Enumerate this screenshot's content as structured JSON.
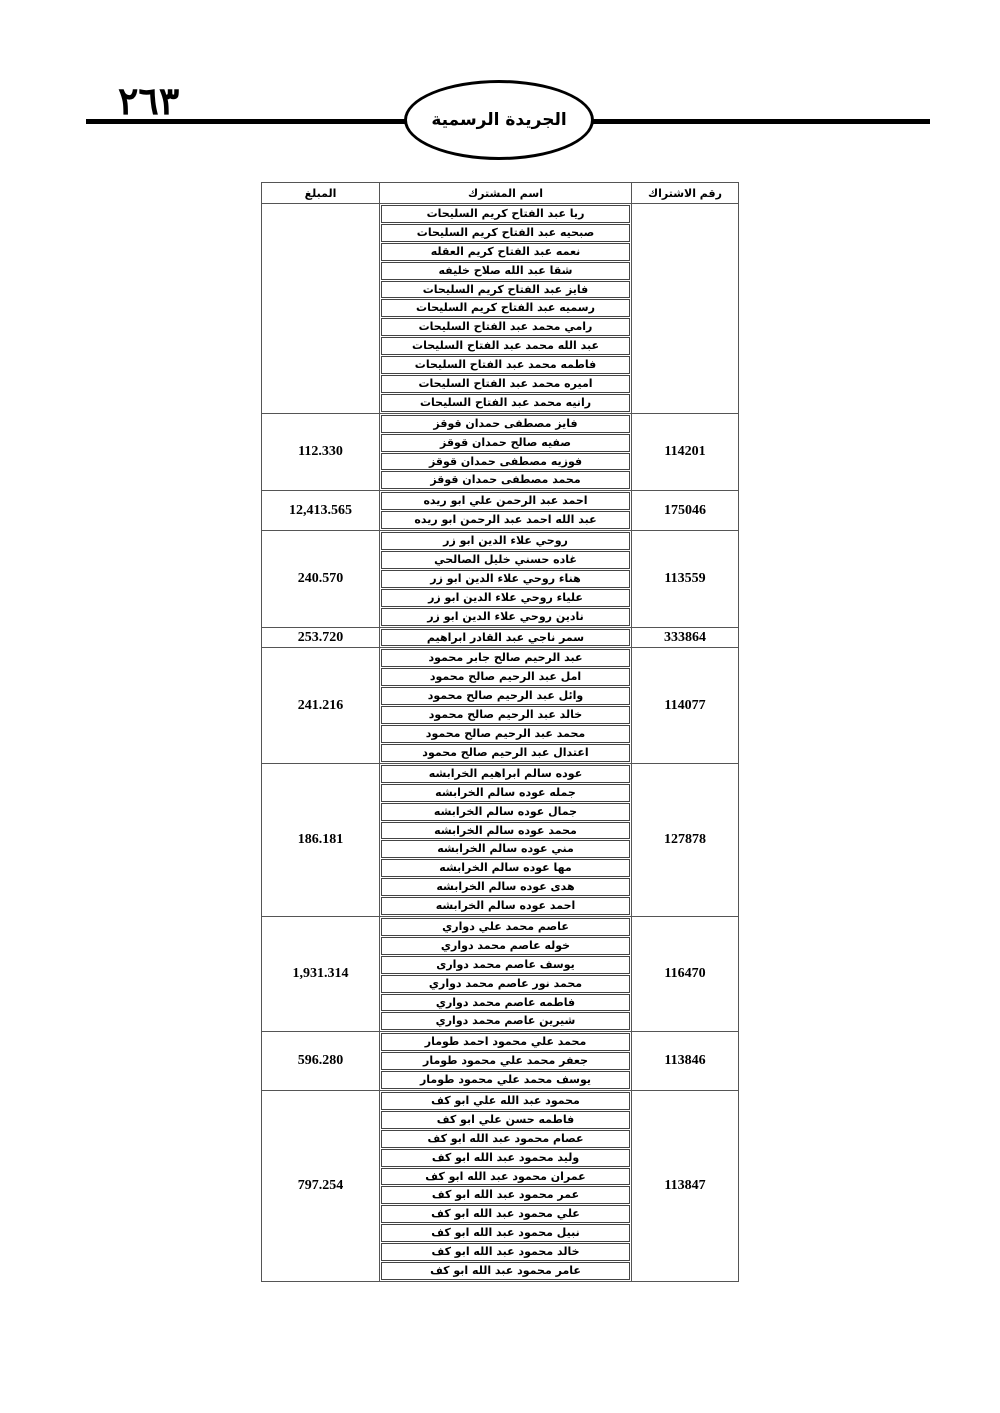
{
  "header": {
    "page_number": "٢٦٣",
    "publication": "الجريدة الرسمية"
  },
  "table": {
    "columns": {
      "subscription": "رقم الاشتراك",
      "name": "اسم المشترك",
      "amount": "المبلغ"
    },
    "groups": [
      {
        "subscription": "",
        "amount": "",
        "names": [
          "ريا عبد الفتاح كريم السليحات",
          "صبحيه عبد الفتاح كريم السليحات",
          "نعمه عبد الفتاح كريم العقله",
          "شقا عبد الله صلاح خليفه",
          "فايز عبد الفتاح كريم السليحات",
          "رسميه عبد الفتاح كريم السليحات",
          "رامي محمد عبد الفتاح السليحات",
          "عبد الله محمد عبد الفتاح السليحات",
          "فاطمه محمد عبد الفتاح السليحات",
          "اميره محمد عبد الفتاح السليحات",
          "رانيه محمد عبد الفتاح السليحات"
        ]
      },
      {
        "subscription": "114201",
        "amount": "112.330",
        "names": [
          "فايز مصطفى حمدان قوقز",
          "صفيه صالح حمدان قوقز",
          "فوزيه مصطفى حمدان قوقز",
          "محمد مصطفى حمدان قوقز"
        ]
      },
      {
        "subscription": "175046",
        "amount": "12,413.565",
        "names": [
          "احمد عبد الرحمن علي ابو ريده",
          "عبد الله احمد عبد الرحمن ابو ريده"
        ]
      },
      {
        "subscription": "113559",
        "amount": "240.570",
        "names": [
          "روحي علاء الدين ابو زر",
          "غاده حسني خليل الصالحي",
          "هناء روحي علاء الدين ابو زر",
          "علياء روحي علاء الدين ابو زر",
          "نادين روحي علاء الدين ابو زر"
        ]
      },
      {
        "subscription": "333864",
        "amount": "253.720",
        "names": [
          "سمر ناجي عبد القادر ابراهيم"
        ]
      },
      {
        "subscription": "114077",
        "amount": "241.216",
        "names": [
          "عبد الرحيم صالح جابر محمود",
          "امل عبد الرحيم صالح محمود",
          "وائل عبد الرحيم صالح محمود",
          "خالد عبد الرحيم صالح محمود",
          "محمد عبد الرحيم صالح محمود",
          "اعتدال عبد الرحيم صالح محمود"
        ]
      },
      {
        "subscription": "127878",
        "amount": "186.181",
        "names": [
          "عوده سالم ابراهيم الخرابشه",
          "جمله عوده سالم الخرابشه",
          "جمال عوده سالم الخرابشه",
          "محمد عوده سالم الخرابشه",
          "مني عوده سالم الخرابشه",
          "مها عوده سالم الخرابشه",
          "هدى عوده سالم الخرابشه",
          "احمد عوده سالم الخرابشه"
        ]
      },
      {
        "subscription": "116470",
        "amount": "1,931.314",
        "names": [
          "عاصم محمد علي دواري",
          "خوله عاصم محمد دواري",
          "يوسف عاصم محمد دوارى",
          "محمد نور عاصم محمد دواري",
          "فاطمه عاصم محمد دواري",
          "شيرين عاصم محمد دواري"
        ]
      },
      {
        "subscription": "113846",
        "amount": "596.280",
        "names": [
          "محمد علي محمود احمد طومار",
          "جعفر محمد علي محمود طومار",
          "يوسف محمد علي محمود طومار"
        ]
      },
      {
        "subscription": "113847",
        "amount": "797.254",
        "names": [
          "محمود عبد الله علي ابو كف",
          "فاطمه حسن علي ابو كف",
          "عصام محمود عبد الله ابو كف",
          "وليد محمود عبد الله ابو كف",
          "عمران محمود عبد الله ابو كف",
          "عمر محمود عبد الله ابو كف",
          "علي محمود عبد الله ابو كف",
          "نبيل محمود عبد الله ابو كف",
          "خالد محمود عبد الله ابو كف",
          "عامر محمود عبد الله ابو كف"
        ]
      }
    ]
  }
}
